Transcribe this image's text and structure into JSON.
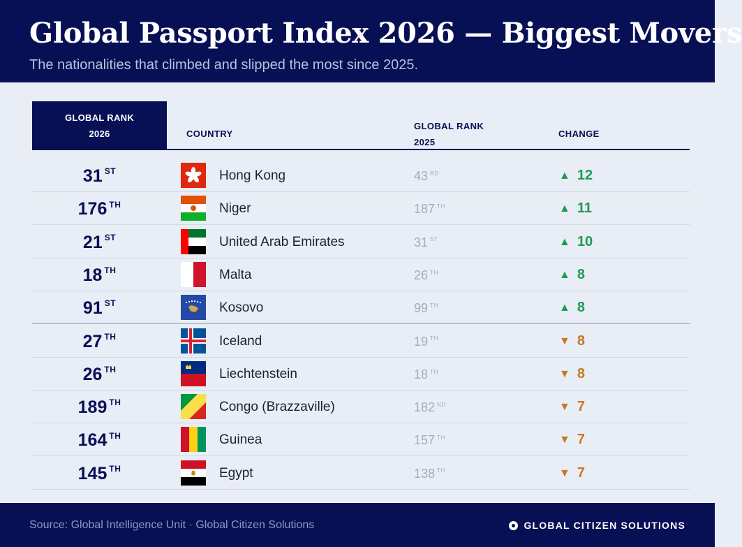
{
  "header": {
    "title": "Global Passport Index 2026 — Biggest Movers",
    "subtitle": "The nationalities that climbed and slipped the most since 2025."
  },
  "columns": {
    "rank_2026": "GLOBAL RANK 2026",
    "country": "COUNTRY",
    "rank_2025": "GLOBAL RANK 2025",
    "change": "CHANGE"
  },
  "colors": {
    "navy": "#071055",
    "up": "#1e9a52",
    "down": "#c47a21",
    "background": "#e9edf5"
  },
  "chart_data": {
    "type": "table",
    "rows": [
      {
        "rank_2026": "31",
        "rank_2026_suffix": "ST",
        "country": "Hong Kong",
        "flag": "hong-kong",
        "rank_2025": "43",
        "rank_2025_suffix": "RD",
        "direction": "up",
        "change": "12"
      },
      {
        "rank_2026": "176",
        "rank_2026_suffix": "TH",
        "country": "Niger",
        "flag": "niger",
        "rank_2025": "187",
        "rank_2025_suffix": "TH",
        "direction": "up",
        "change": "11"
      },
      {
        "rank_2026": "21",
        "rank_2026_suffix": "ST",
        "country": "United Arab Emirates",
        "flag": "uae",
        "rank_2025": "31",
        "rank_2025_suffix": "ST",
        "direction": "up",
        "change": "10"
      },
      {
        "rank_2026": "18",
        "rank_2026_suffix": "TH",
        "country": "Malta",
        "flag": "malta",
        "rank_2025": "26",
        "rank_2025_suffix": "TH",
        "direction": "up",
        "change": "8"
      },
      {
        "rank_2026": "91",
        "rank_2026_suffix": "ST",
        "country": "Kosovo",
        "flag": "kosovo",
        "rank_2025": "99",
        "rank_2025_suffix": "TH",
        "direction": "up",
        "change": "8"
      },
      {
        "rank_2026": "27",
        "rank_2026_suffix": "TH",
        "country": "Iceland",
        "flag": "iceland",
        "rank_2025": "19",
        "rank_2025_suffix": "TH",
        "direction": "down",
        "change": "8"
      },
      {
        "rank_2026": "26",
        "rank_2026_suffix": "TH",
        "country": "Liechtenstein",
        "flag": "liechtenstein",
        "rank_2025": "18",
        "rank_2025_suffix": "TH",
        "direction": "down",
        "change": "8"
      },
      {
        "rank_2026": "189",
        "rank_2026_suffix": "TH",
        "country": "Congo (Brazzaville)",
        "flag": "congo",
        "rank_2025": "182",
        "rank_2025_suffix": "ND",
        "direction": "down",
        "change": "7"
      },
      {
        "rank_2026": "164",
        "rank_2026_suffix": "TH",
        "country": "Guinea",
        "flag": "guinea",
        "rank_2025": "157",
        "rank_2025_suffix": "TH",
        "direction": "down",
        "change": "7"
      },
      {
        "rank_2026": "145",
        "rank_2026_suffix": "TH",
        "country": "Egypt",
        "flag": "egypt",
        "rank_2025": "138",
        "rank_2025_suffix": "TH",
        "direction": "down",
        "change": "7"
      }
    ]
  },
  "footer": {
    "source": "Source: Global Intelligence Unit · Global Citizen Solutions",
    "brand": "GLOBAL CITIZEN SOLUTIONS"
  }
}
